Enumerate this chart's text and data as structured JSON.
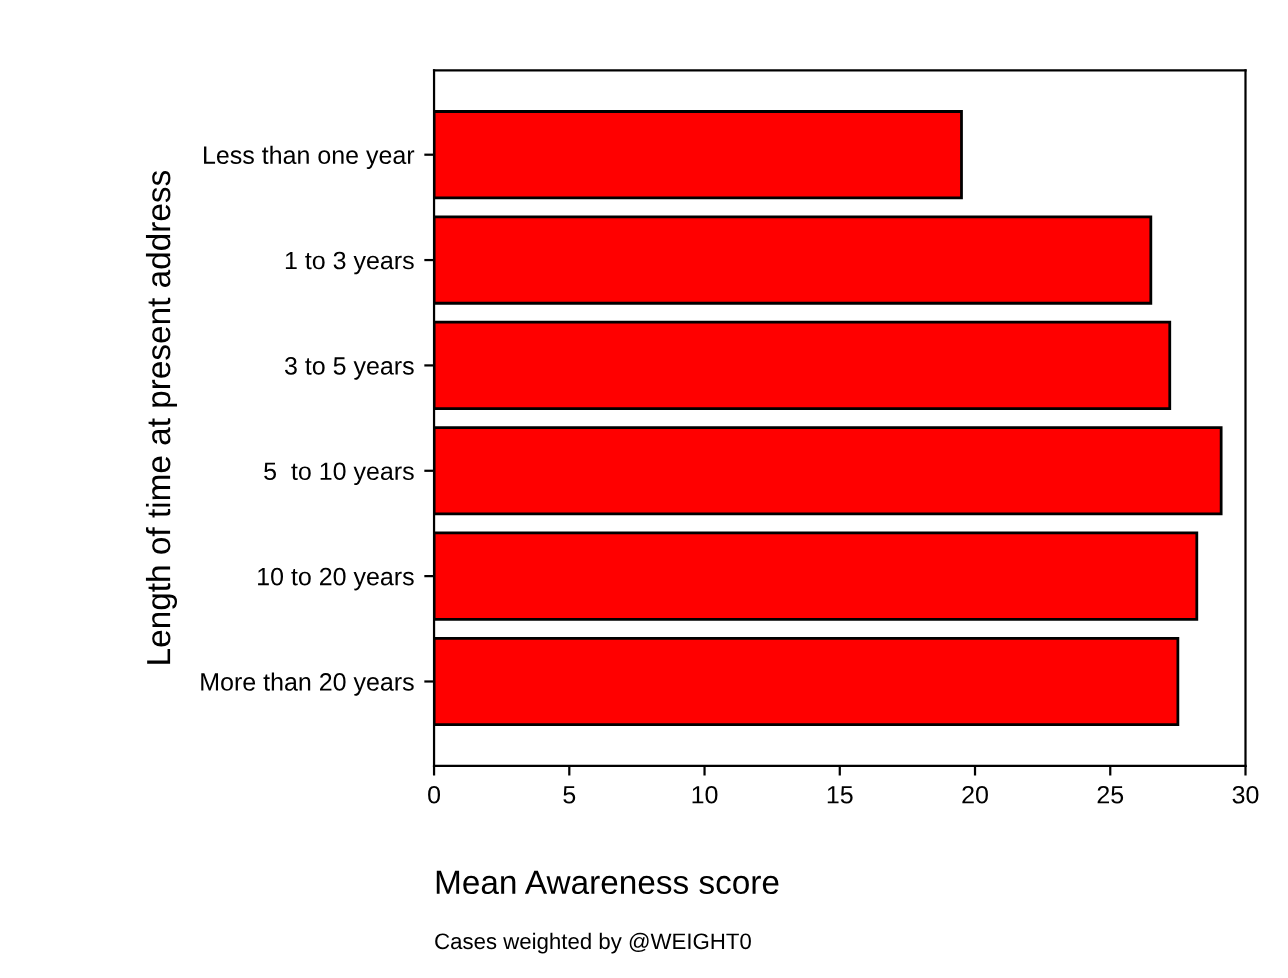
{
  "chart_data": {
    "type": "bar",
    "orientation": "horizontal",
    "categories": [
      "Less than one year",
      "1 to 3 years",
      "3 to 5 years",
      "5  to 10 years",
      "10 to 20 years",
      "More than 20 years"
    ],
    "values": [
      19.5,
      26.5,
      27.2,
      29.1,
      28.2,
      27.5
    ],
    "color": "#ff0000",
    "xlim": [
      0,
      30
    ],
    "xticks": [
      0,
      5,
      10,
      15,
      20,
      25,
      30
    ],
    "xlabel": "Mean Awareness score",
    "ylabel": "Length of time at present address",
    "annotations": [
      "Cases weighted by @WEIGHT0"
    ],
    "grid": false
  }
}
